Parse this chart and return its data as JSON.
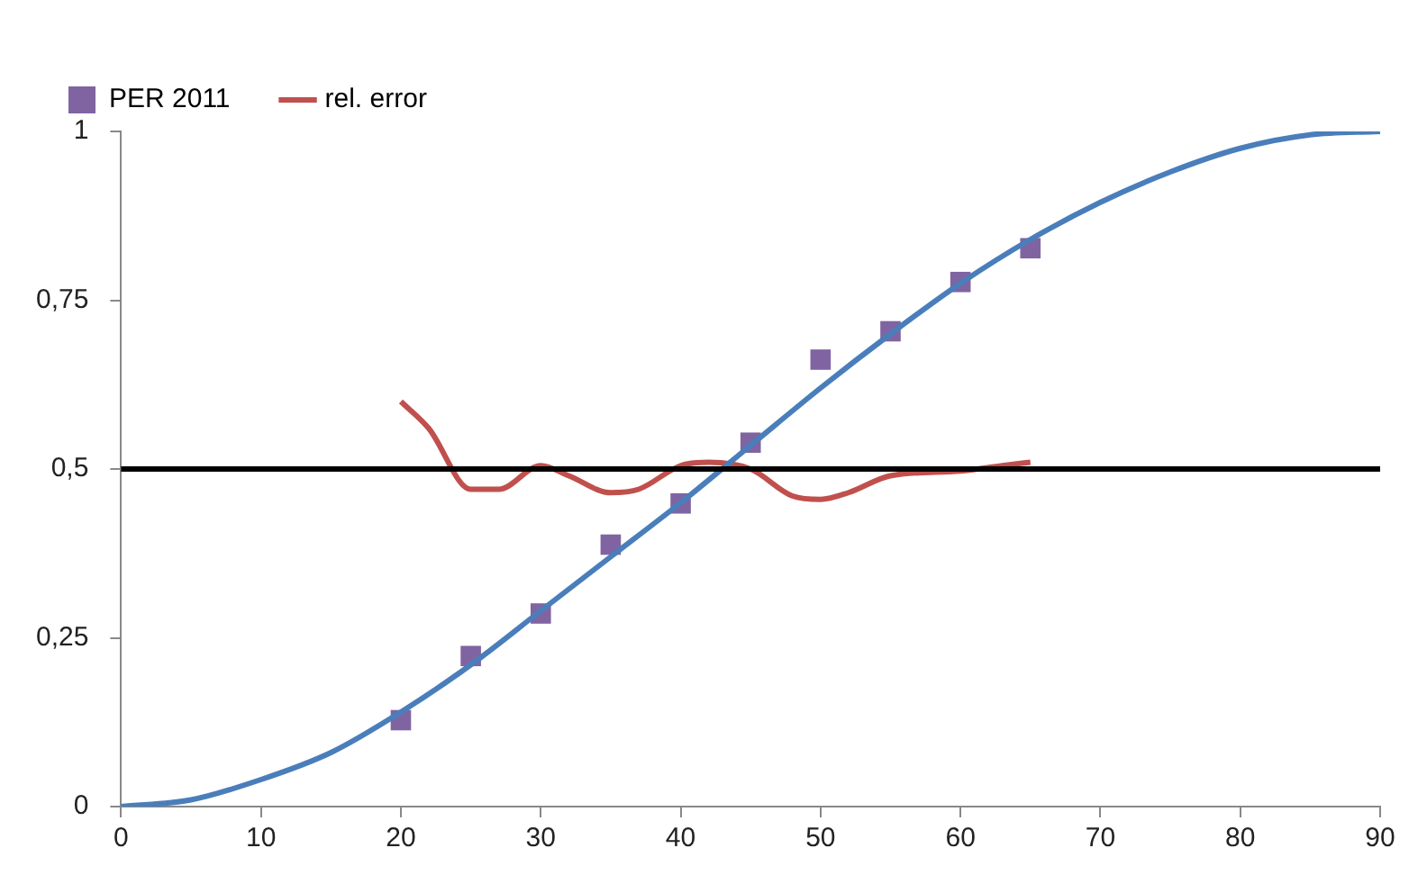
{
  "chart_data": {
    "type": "line",
    "x": [
      0,
      5,
      10,
      15,
      20,
      25,
      30,
      35,
      40,
      45,
      50,
      55,
      60,
      65,
      70,
      75,
      80,
      85,
      90
    ],
    "series": [
      {
        "color": "#4a7ebb",
        "values": [
          0,
          0.01,
          0.04,
          0.08,
          0.14,
          0.21,
          0.29,
          0.37,
          0.45,
          0.535,
          0.62,
          0.7,
          0.775,
          0.84,
          0.895,
          0.94,
          0.975,
          0.995,
          1
        ]
      },
      {
        "type": "scatter",
        "name": "PER 2011",
        "color": "#8064a2",
        "marker": "square",
        "x": [
          20,
          25,
          30,
          35,
          40,
          45,
          50,
          55,
          60,
          65
        ],
        "values": [
          0.128,
          0.223,
          0.286,
          0.388,
          0.449,
          0.539,
          0.662,
          0.704,
          0.777,
          0.827
        ]
      },
      {
        "type": "line",
        "name": "rel. error",
        "color": "#c0504d",
        "x": [
          20,
          22,
          25,
          27,
          30,
          32,
          35,
          37,
          40,
          42,
          45,
          48,
          50,
          52,
          55,
          60,
          63,
          65
        ],
        "values": [
          0.6,
          0.56,
          0.47,
          0.47,
          0.505,
          0.49,
          0.465,
          0.47,
          0.505,
          0.51,
          0.5,
          0.46,
          0.455,
          0.465,
          0.49,
          0.497,
          0.505,
          0.51
        ]
      }
    ],
    "xlim": [
      0,
      90
    ],
    "xticks": [
      0,
      10,
      20,
      30,
      40,
      50,
      60,
      70,
      80,
      90
    ],
    "ylim": [
      0,
      1
    ],
    "yticks": [
      0,
      {
        "value": 0.25,
        "label": "0,25"
      },
      {
        "value": 0.5,
        "label": "0,5"
      },
      {
        "value": 0.75,
        "label": "0,75"
      },
      1
    ],
    "ref_lines": [
      {
        "axis": "y",
        "value": 0.5,
        "color": "#000000"
      }
    ],
    "grid": false,
    "legend": "top left",
    "marker": "none"
  }
}
